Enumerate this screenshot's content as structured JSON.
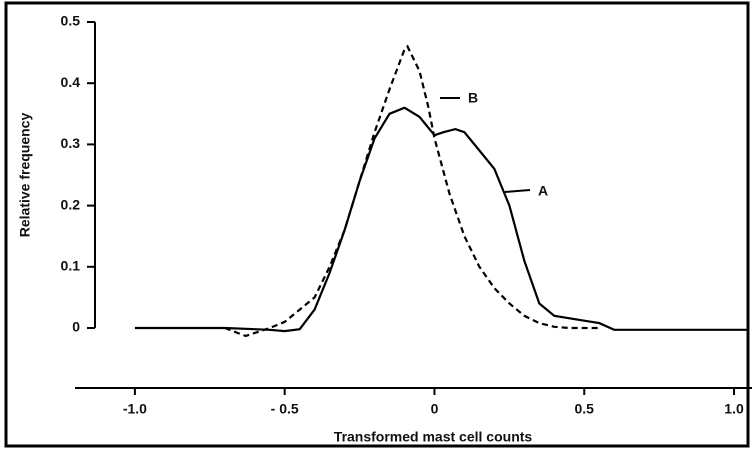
{
  "chart_data": {
    "type": "line",
    "xlabel": "Transformed mast cell counts",
    "ylabel": "Relative frequency",
    "xlim": [
      -1.2,
      1.06
    ],
    "ylim": [
      0,
      0.5
    ],
    "xticks": [
      {
        "value": -1,
        "label": "-1.0"
      },
      {
        "value": -0.5,
        "label": "- 0.5"
      },
      0,
      0.5,
      {
        "value": 1,
        "label": "1.0"
      }
    ],
    "yticks": [
      0,
      0.1,
      0.2,
      0.3,
      0.4,
      0.5
    ],
    "grid": false,
    "series": [
      {
        "name": "A",
        "color": "#000000",
        "style": "solid",
        "x": [
          -1.0,
          -0.7,
          -0.55,
          -0.5,
          -0.45,
          -0.4,
          -0.35,
          -0.3,
          -0.25,
          -0.2,
          -0.15,
          -0.1,
          -0.05,
          0,
          0.03,
          0.07,
          0.1,
          0.15,
          0.2,
          0.25,
          0.3,
          0.35,
          0.4,
          0.5,
          0.55,
          0.6,
          1.0,
          1.05
        ],
        "values": [
          0,
          0,
          -0.003,
          -0.005,
          -0.002,
          0.03,
          0.09,
          0.16,
          0.24,
          0.31,
          0.35,
          0.36,
          0.345,
          0.315,
          0.32,
          0.325,
          0.32,
          0.29,
          0.26,
          0.2,
          0.11,
          0.04,
          0.02,
          0.012,
          0.008,
          -0.003,
          -0.003,
          -0.003
        ]
      },
      {
        "name": "B",
        "color": "#000000",
        "style": "dashed",
        "x": [
          -0.7,
          -0.63,
          -0.55,
          -0.5,
          -0.4,
          -0.35,
          -0.3,
          -0.25,
          -0.2,
          -0.15,
          -0.1,
          -0.09,
          -0.05,
          -0.02,
          0,
          0.05,
          0.1,
          0.15,
          0.2,
          0.25,
          0.3,
          0.35,
          0.4,
          0.45,
          0.55
        ],
        "values": [
          0,
          -0.013,
          0,
          0.01,
          0.05,
          0.1,
          0.16,
          0.24,
          0.32,
          0.39,
          0.455,
          0.46,
          0.42,
          0.36,
          0.31,
          0.22,
          0.15,
          0.1,
          0.065,
          0.04,
          0.02,
          0.008,
          0.002,
          0,
          0
        ]
      }
    ]
  }
}
